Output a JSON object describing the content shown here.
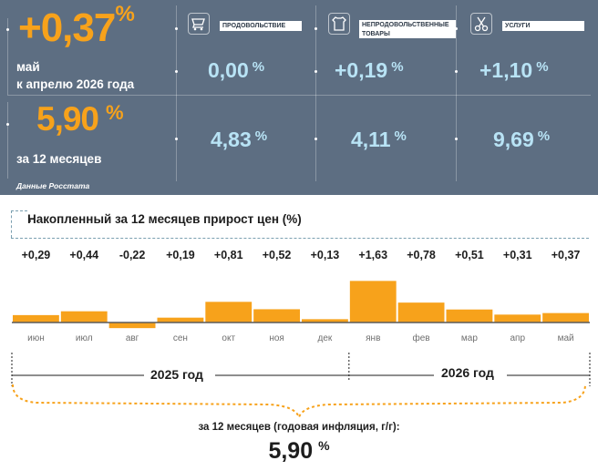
{
  "header": {
    "monthly_value": "+0,37",
    "percent_sign": "%",
    "monthly_label_line1": "май",
    "monthly_label_line2": "к апрелю 2026 года",
    "annual_value": "5,90",
    "annual_label": "за 12 месяцев",
    "source": "Данные Росстата"
  },
  "categories": [
    {
      "name": "ПРОДОВОЛЬСТВИЕ",
      "icon": "shopping-cart-icon",
      "monthly": "0,00",
      "annual": "4,83"
    },
    {
      "name": "НЕПРОДОВОЛЬСТВЕННЫЕ ТОВАРЫ",
      "icon": "clothing-icon",
      "monthly": "+0,19",
      "annual": "4,11"
    },
    {
      "name": "УСЛУГИ",
      "icon": "scissors-icon",
      "monthly": "+1,10",
      "annual": "9,69"
    }
  ],
  "chart_data": {
    "type": "bar",
    "title": "Накопленный за 12 месяцев прирост цен (%)",
    "categories": [
      "июн",
      "июл",
      "авг",
      "сен",
      "окт",
      "ноя",
      "дек",
      "янв",
      "фев",
      "мар",
      "апр",
      "май"
    ],
    "values": [
      0.29,
      0.44,
      -0.22,
      0.19,
      0.81,
      0.52,
      0.13,
      1.63,
      0.78,
      0.51,
      0.31,
      0.37
    ],
    "value_labels": [
      "+0,29",
      "+0,44",
      "-0,22",
      "+0,19",
      "+0,81",
      "+0,52",
      "+0,13",
      "+1,63",
      "+0,78",
      "+0,51",
      "+0,31",
      "+0,37"
    ],
    "bar_color": "#f7a21b",
    "year_groups": [
      {
        "label": "2025 год",
        "months": [
          "июн",
          "июл",
          "авг",
          "сен",
          "окт",
          "ноя",
          "дек"
        ]
      },
      {
        "label": "2026 год",
        "months": [
          "янв",
          "фев",
          "мар",
          "апр",
          "май"
        ]
      }
    ]
  },
  "footer": {
    "label": "за 12 месяцев (годовая инфляция, г/г):",
    "value": "5,90",
    "percent_sign": "%"
  },
  "colors": {
    "panel_bg": "#5d6e82",
    "accent_orange": "#f7a21b",
    "value_light_blue": "#b8e3f5"
  }
}
